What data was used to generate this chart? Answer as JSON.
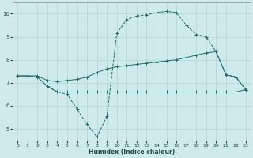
{
  "xlabel": "Humidex (Indice chaleur)",
  "background_color": "#ceeaea",
  "grid_color": "#b8d8d8",
  "line_color": "#1e6b6b",
  "xlim": [
    -0.5,
    23.5
  ],
  "ylim": [
    4.5,
    10.5
  ],
  "xticks": [
    0,
    1,
    2,
    3,
    4,
    5,
    6,
    7,
    8,
    9,
    10,
    11,
    12,
    13,
    14,
    15,
    16,
    17,
    18,
    19,
    20,
    21,
    22,
    23
  ],
  "yticks": [
    5,
    6,
    7,
    8,
    9,
    10
  ],
  "series": [
    {
      "x": [
        0,
        1,
        2,
        3,
        4,
        5,
        6,
        7,
        8,
        9,
        10,
        11,
        12,
        13,
        14,
        15,
        16,
        17,
        18,
        19,
        20,
        21,
        22,
        23
      ],
      "y": [
        7.3,
        7.3,
        7.25,
        6.85,
        6.6,
        6.6,
        6.6,
        6.6,
        6.6,
        6.6,
        6.6,
        6.6,
        6.6,
        6.6,
        6.6,
        6.6,
        6.6,
        6.6,
        6.6,
        6.6,
        6.6,
        6.6,
        6.6,
        6.7
      ],
      "marker": true,
      "linestyle": "-"
    },
    {
      "x": [
        0,
        1,
        2,
        3,
        4,
        5,
        6,
        7,
        8,
        9,
        10,
        11,
        12,
        13,
        14,
        15,
        16,
        17,
        18,
        19,
        20,
        21,
        22,
        23
      ],
      "y": [
        7.3,
        7.3,
        7.3,
        7.1,
        7.05,
        7.1,
        7.15,
        7.25,
        7.45,
        7.6,
        7.7,
        7.75,
        7.8,
        7.85,
        7.9,
        7.95,
        8.0,
        8.1,
        8.2,
        8.3,
        8.35,
        7.35,
        7.25,
        6.7
      ],
      "marker": true,
      "linestyle": "-"
    },
    {
      "x": [
        3,
        4,
        5,
        6,
        7,
        8,
        9,
        10,
        11,
        12,
        13,
        14,
        15,
        16,
        17,
        18,
        19,
        20,
        21,
        22,
        23
      ],
      "y": [
        6.85,
        6.6,
        6.5,
        5.85,
        5.2,
        4.65,
        5.55,
        9.15,
        9.75,
        9.9,
        9.95,
        10.05,
        10.1,
        10.05,
        9.5,
        9.1,
        9.0,
        8.35,
        7.35,
        7.25,
        6.7
      ],
      "marker": true,
      "linestyle": "--"
    }
  ]
}
